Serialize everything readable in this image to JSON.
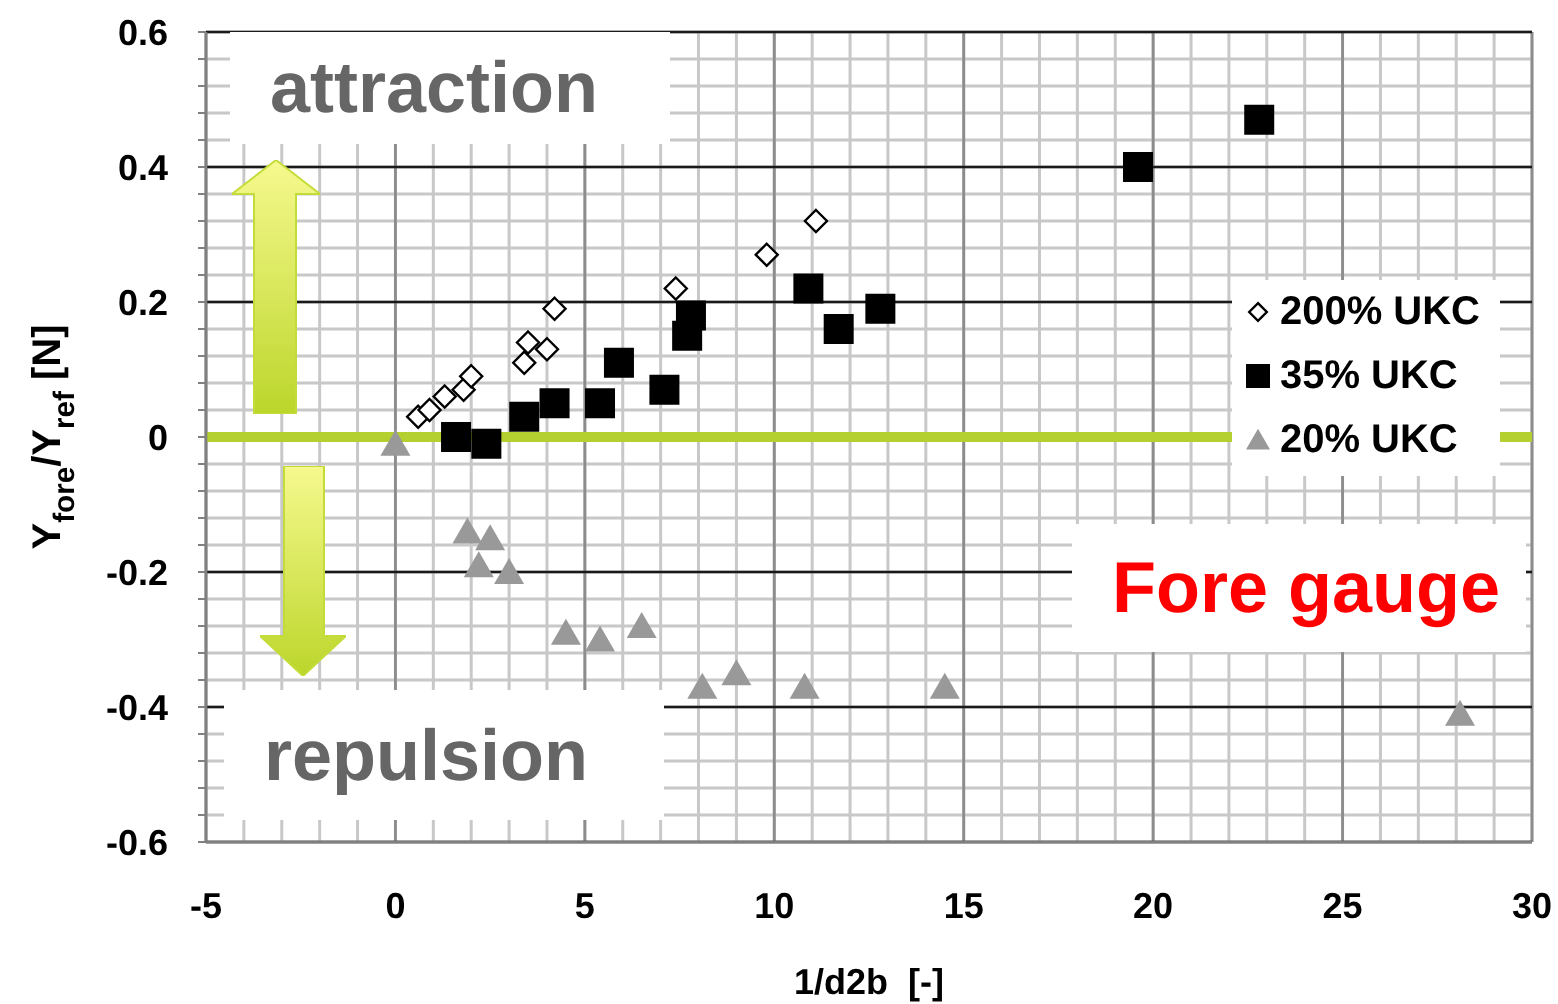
{
  "chart_data": {
    "type": "scatter",
    "xlabel": "1/d2b  [-]",
    "ylabel": "Y$_{fore}$/Y$_{ref}$ [N]",
    "xlim": [
      -5,
      30
    ],
    "ylim": [
      -0.6,
      0.6
    ],
    "xticks": [
      -5,
      {
        "value": -4,
        "label": null
      },
      {
        "value": -3,
        "label": null
      },
      {
        "value": -2,
        "label": null
      },
      {
        "value": -1,
        "label": null
      },
      0,
      {
        "value": 1,
        "label": null
      },
      {
        "value": 2,
        "label": null
      },
      {
        "value": 3,
        "label": null
      },
      {
        "value": 4,
        "label": null
      },
      5,
      {
        "value": 6,
        "label": null
      },
      {
        "value": 7,
        "label": null
      },
      {
        "value": 8,
        "label": null
      },
      {
        "value": 9,
        "label": null
      },
      10,
      {
        "value": 11,
        "label": null
      },
      {
        "value": 12,
        "label": null
      },
      {
        "value": 13,
        "label": null
      },
      {
        "value": 14,
        "label": null
      },
      15,
      {
        "value": 16,
        "label": null
      },
      {
        "value": 17,
        "label": null
      },
      {
        "value": 18,
        "label": null
      },
      {
        "value": 19,
        "label": null
      },
      20,
      {
        "value": 21,
        "label": null
      },
      {
        "value": 22,
        "label": null
      },
      {
        "value": 23,
        "label": null
      },
      {
        "value": 24,
        "label": null
      },
      25,
      {
        "value": 26,
        "label": null
      },
      {
        "value": 27,
        "label": null
      },
      {
        "value": 28,
        "label": null
      },
      {
        "value": 29,
        "label": null
      },
      30
    ],
    "yticks": [
      -0.6,
      {
        "value": -0.56,
        "label": null
      },
      {
        "value": -0.52,
        "label": null
      },
      {
        "value": -0.48,
        "label": null
      },
      {
        "value": -0.44,
        "label": null
      },
      -0.4,
      {
        "value": -0.36,
        "label": null
      },
      {
        "value": -0.32,
        "label": null
      },
      {
        "value": -0.28,
        "label": null
      },
      {
        "value": -0.24,
        "label": null
      },
      -0.2,
      {
        "value": -0.16,
        "label": null
      },
      {
        "value": -0.12,
        "label": null
      },
      {
        "value": -0.08,
        "label": null
      },
      {
        "value": -0.04,
        "label": null
      },
      0,
      {
        "value": 0.04,
        "label": null
      },
      {
        "value": 0.08,
        "label": null
      },
      {
        "value": 0.12,
        "label": null
      },
      {
        "value": 0.16,
        "label": null
      },
      0.2,
      {
        "value": 0.24,
        "label": null
      },
      {
        "value": 0.28,
        "label": null
      },
      {
        "value": 0.32,
        "label": null
      },
      {
        "value": 0.36,
        "label": null
      },
      0.4,
      {
        "value": 0.44,
        "label": null
      },
      {
        "value": 0.48,
        "label": null
      },
      {
        "value": 0.52,
        "label": null
      },
      {
        "value": 0.56,
        "label": null
      },
      0.6
    ],
    "grid": true,
    "legend": "right",
    "annotations": [
      "attraction",
      "repulsion",
      "Fore gauge"
    ],
    "ref_lines": [
      {
        "axis": "y",
        "value": 0,
        "color": "#b4cf30"
      }
    ],
    "series": [
      {
        "name": "200% UKC",
        "color": "#000000",
        "marker": "diamond",
        "x": [
          0.6,
          0.9,
          1.3,
          1.8,
          2.0,
          3.4,
          3.5,
          4.0,
          4.2,
          7.4,
          9.8,
          11.1
        ],
        "values": [
          0.03,
          0.04,
          0.06,
          0.07,
          0.09,
          0.11,
          0.14,
          0.13,
          0.19,
          0.22,
          0.27,
          0.32
        ]
      },
      {
        "name": "35% UKC",
        "color": "#000000",
        "marker": "square",
        "x": [
          1.6,
          2.4,
          3.4,
          4.2,
          5.4,
          5.9,
          7.1,
          7.7,
          7.8,
          10.9,
          11.7,
          12.8,
          19.6,
          22.8
        ],
        "values": [
          0.0,
          -0.01,
          0.03,
          0.05,
          0.05,
          0.11,
          0.07,
          0.15,
          0.18,
          0.22,
          0.16,
          0.19,
          0.4,
          0.47
        ]
      },
      {
        "name": "20% UKC",
        "color": "#999999",
        "marker": "triangle",
        "x": [
          0,
          1.9,
          2.5,
          2.2,
          3.0,
          4.5,
          5.4,
          6.5,
          8.1,
          9.0,
          10.8,
          14.5,
          28.1
        ],
        "values": [
          -0.01,
          -0.14,
          -0.15,
          -0.19,
          -0.2,
          -0.29,
          -0.3,
          -0.28,
          -0.37,
          -0.35,
          -0.37,
          -0.37,
          -0.41
        ]
      }
    ]
  }
}
